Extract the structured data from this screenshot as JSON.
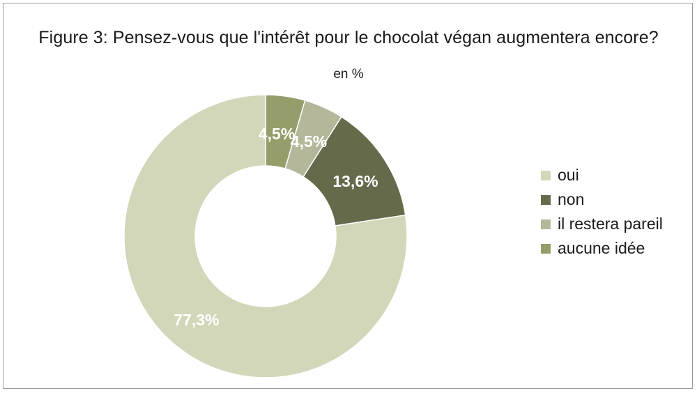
{
  "chart_data": {
    "type": "pie",
    "variant": "donut",
    "title": "Figure 3: Pensez-vous que l'intérêt pour le chocolat végan augmentera encore?",
    "subtitle": "en %",
    "unit": "%",
    "slices": [
      {
        "label": "aucune idée",
        "value": 4.5,
        "value_label": "4,5%",
        "color": "#959e6b"
      },
      {
        "label": "il restera pareil",
        "value": 4.5,
        "value_label": "4,5%",
        "color": "#b4b799"
      },
      {
        "label": "non",
        "value": 13.6,
        "value_label": "13,6%",
        "color": "#656a4b"
      },
      {
        "label": "oui",
        "value": 77.3,
        "value_label": "77,3%",
        "color": "#d3d7b9"
      }
    ],
    "legend": {
      "position": "right",
      "entries": [
        {
          "label": "oui",
          "color": "#d3d7b9"
        },
        {
          "label": "non",
          "color": "#656a4b"
        },
        {
          "label": "il restera pareil",
          "color": "#b4b799"
        },
        {
          "label": "aucune idée",
          "color": "#959e6b"
        }
      ]
    }
  }
}
